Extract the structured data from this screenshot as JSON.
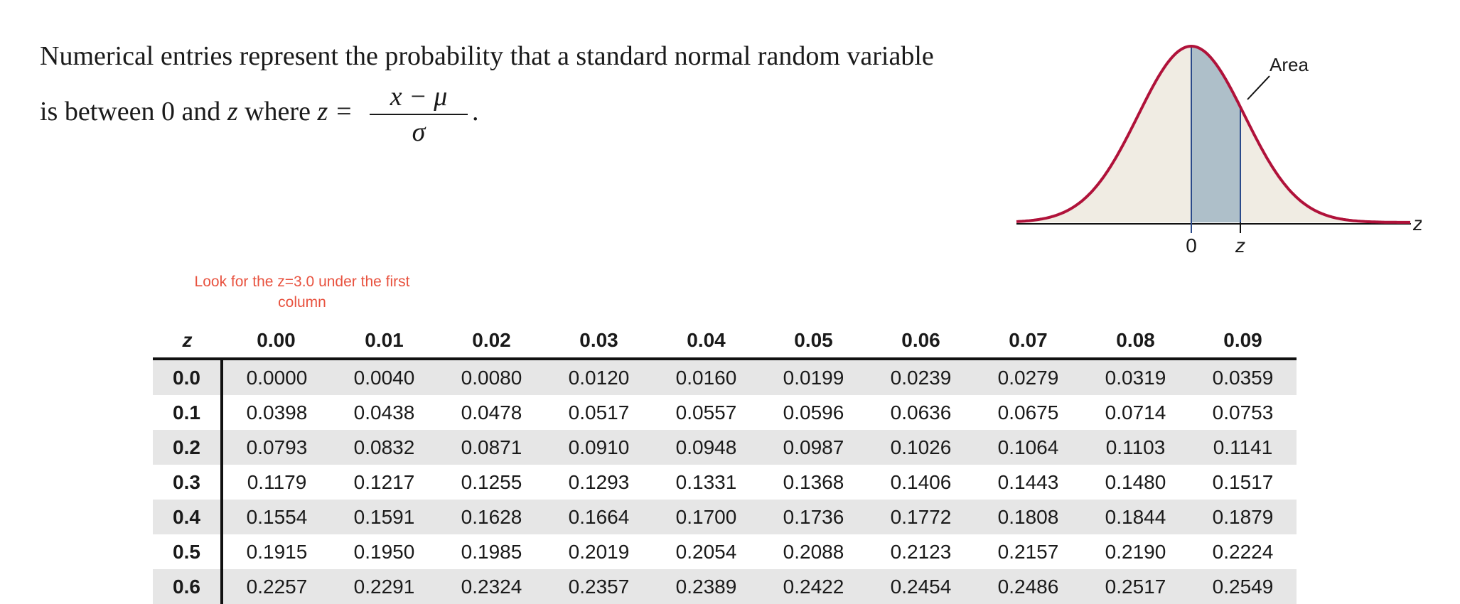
{
  "intro": {
    "line1": "Numerical entries represent the probability that a standard normal random variable",
    "line2_prefix": "is between 0 and ",
    "line2_var": "z",
    "line2_mid": " where ",
    "line2_eq": "z =",
    "frac_num": "x − μ",
    "frac_den": "σ",
    "frac_end": "."
  },
  "note": {
    "line1": "Look for the z=3.0 under the first",
    "line2": "column"
  },
  "curve": {
    "area_label": "Area",
    "tick_zero": "0",
    "tick_z": "z",
    "axis_label": "z",
    "colors": {
      "curve": "#b0123a",
      "fill": "#f0ece3",
      "shaded": "#aebfc9",
      "divider": "#2a4a8a",
      "axis": "#111111"
    }
  },
  "table": {
    "z_header": "z",
    "columns": [
      "0.00",
      "0.01",
      "0.02",
      "0.03",
      "0.04",
      "0.05",
      "0.06",
      "0.07",
      "0.08",
      "0.09"
    ],
    "rows": [
      {
        "z": "0.0",
        "values": [
          "0.0000",
          "0.0040",
          "0.0080",
          "0.0120",
          "0.0160",
          "0.0199",
          "0.0239",
          "0.0279",
          "0.0319",
          "0.0359"
        ]
      },
      {
        "z": "0.1",
        "values": [
          "0.0398",
          "0.0438",
          "0.0478",
          "0.0517",
          "0.0557",
          "0.0596",
          "0.0636",
          "0.0675",
          "0.0714",
          "0.0753"
        ]
      },
      {
        "z": "0.2",
        "values": [
          "0.0793",
          "0.0832",
          "0.0871",
          "0.0910",
          "0.0948",
          "0.0987",
          "0.1026",
          "0.1064",
          "0.1103",
          "0.1141"
        ]
      },
      {
        "z": "0.3",
        "values": [
          "0.1179",
          "0.1217",
          "0.1255",
          "0.1293",
          "0.1331",
          "0.1368",
          "0.1406",
          "0.1443",
          "0.1480",
          "0.1517"
        ]
      },
      {
        "z": "0.4",
        "values": [
          "0.1554",
          "0.1591",
          "0.1628",
          "0.1664",
          "0.1700",
          "0.1736",
          "0.1772",
          "0.1808",
          "0.1844",
          "0.1879"
        ]
      },
      {
        "z": "0.5",
        "values": [
          "0.1915",
          "0.1950",
          "0.1985",
          "0.2019",
          "0.2054",
          "0.2088",
          "0.2123",
          "0.2157",
          "0.2190",
          "0.2224"
        ]
      },
      {
        "z": "0.6",
        "values": [
          "0.2257",
          "0.2291",
          "0.2324",
          "0.2357",
          "0.2389",
          "0.2422",
          "0.2454",
          "0.2486",
          "0.2517",
          "0.2549"
        ]
      }
    ],
    "shade_color": "#e6e6e6"
  }
}
